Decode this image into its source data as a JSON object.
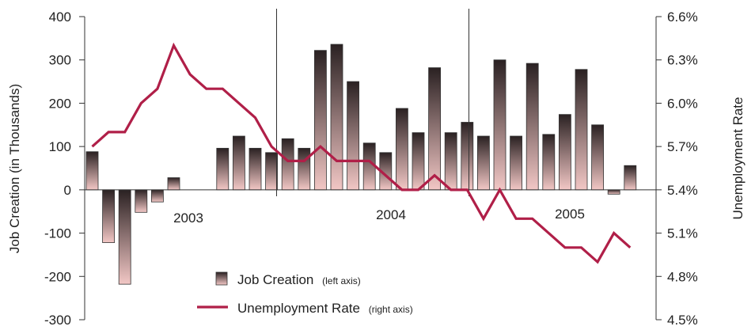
{
  "chart_data": {
    "type": "bar",
    "years": [
      "2003",
      "2004",
      "2005"
    ],
    "series": [
      {
        "name": "Job Creation",
        "axis_note": "(left axis)",
        "type": "bar",
        "axis": "left",
        "values": [
          88,
          -122,
          -218,
          -52,
          -28,
          28,
          null,
          null,
          96,
          124,
          96,
          86,
          118,
          96,
          322,
          336,
          250,
          108,
          86,
          188,
          132,
          282,
          132,
          156,
          124,
          300,
          124,
          292,
          128,
          174,
          278,
          150,
          -10,
          56
        ]
      },
      {
        "name": "Unemployment Rate",
        "axis_note": "(right axis)",
        "type": "line",
        "axis": "right",
        "values": [
          5.7,
          5.8,
          5.8,
          6.0,
          6.1,
          6.4,
          6.2,
          6.1,
          6.1,
          6.0,
          5.9,
          5.7,
          5.6,
          5.6,
          5.7,
          5.6,
          5.6,
          5.6,
          5.5,
          5.4,
          5.4,
          5.5,
          5.4,
          5.4,
          5.2,
          5.4,
          5.2,
          5.2,
          5.1,
          5.0,
          5.0,
          4.9,
          5.1,
          5.0
        ]
      }
    ],
    "left_axis": {
      "label": "Job Creation (in Thousands)",
      "ylim": [
        -300,
        400
      ],
      "ticks": [
        "400",
        "300",
        "200",
        "100",
        "0",
        "-100",
        "-200",
        "-300"
      ]
    },
    "right_axis": {
      "label": "Unemployment Rate",
      "ylim": [
        4.5,
        6.6
      ],
      "ticks": [
        "6.6%",
        "6.3%",
        "6.0%",
        "5.7%",
        "5.4%",
        "5.1%",
        "4.8%",
        "4.5%"
      ]
    },
    "grid": false,
    "legend_position": "bottom-center",
    "colors": {
      "bar_top": "#2a2122",
      "bar_bottom": "#f2c7c5",
      "line": "#b01f48",
      "axis": "#333333"
    }
  }
}
